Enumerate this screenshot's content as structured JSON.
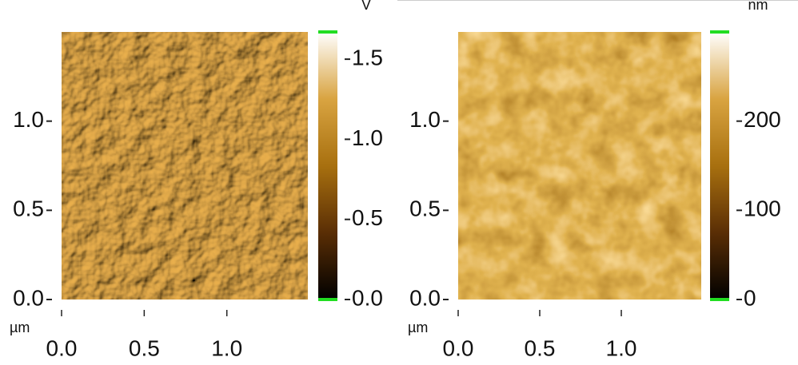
{
  "chart_data": [
    {
      "type": "image",
      "xlim": [
        0,
        1.49
      ],
      "ylim": [
        0,
        1.5
      ],
      "xticks": [
        {
          "value": 0,
          "label": "0.0"
        },
        0.5,
        {
          "value": 1,
          "label": "1.0"
        }
      ],
      "yticks": [
        {
          "value": 0,
          "label": "0.0"
        },
        0.5,
        {
          "value": 1,
          "label": "1.0"
        }
      ],
      "x_unit": "µm",
      "colorbar": {
        "lim": [
          0,
          1.67
        ],
        "ticks": [
          {
            "value": 0,
            "label": "0.0"
          },
          0.5,
          {
            "value": 1,
            "label": "1.0"
          },
          1.5
        ],
        "unit": "V",
        "colors": [
          "#000000",
          "#5a2e05",
          "#a8700f",
          "#d9a441",
          "#ffffff"
        ],
        "cap_color": "#22dd22"
      },
      "texture": "relief"
    },
    {
      "type": "image",
      "xlim": [
        0,
        1.49
      ],
      "ylim": [
        0,
        1.5
      ],
      "xticks": [
        {
          "value": 0,
          "label": "0.0"
        },
        0.5,
        {
          "value": 1,
          "label": "1.0"
        }
      ],
      "yticks": [
        {
          "value": 0,
          "label": "0.0"
        },
        0.5,
        {
          "value": 1,
          "label": "1.0"
        }
      ],
      "x_unit": "µm",
      "colorbar": {
        "lim": [
          0,
          300
        ],
        "ticks": [
          0,
          100,
          200
        ],
        "unit": "nm",
        "colors": [
          "#000000",
          "#5a2e05",
          "#a8700f",
          "#d9a441",
          "#ffffff"
        ],
        "cap_color": "#22dd22"
      },
      "texture": "height"
    }
  ]
}
